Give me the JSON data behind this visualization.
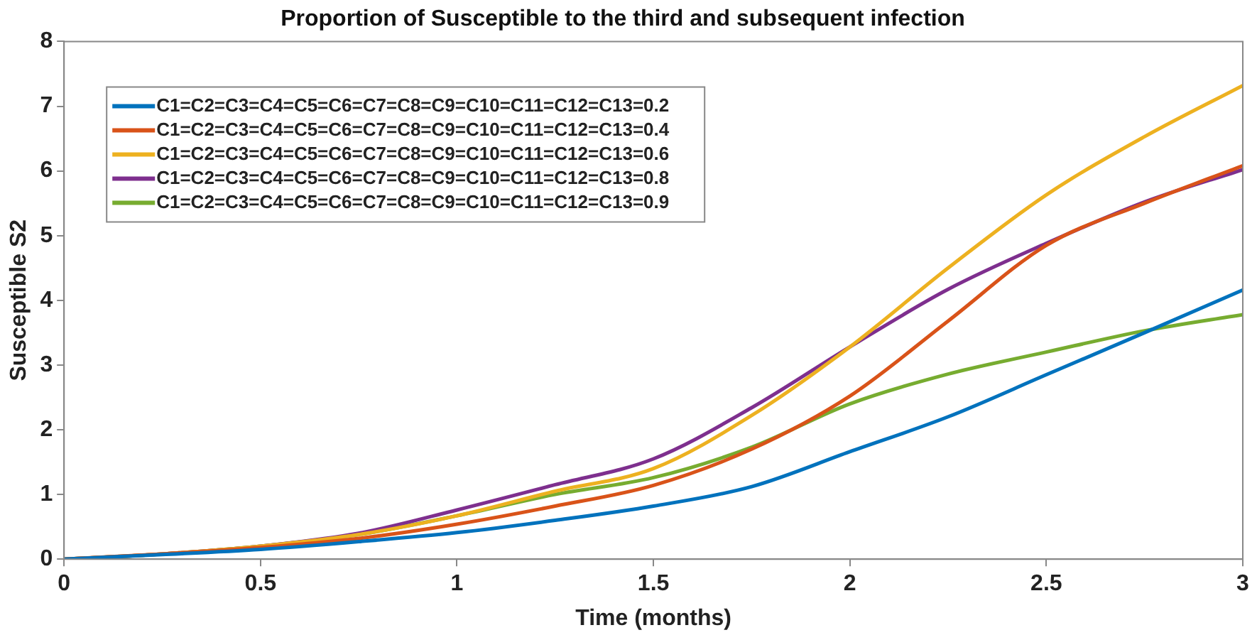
{
  "chart_data": {
    "type": "line",
    "title": "Proportion of Susceptible to the third and subsequent infection",
    "xlabel": "Time (months)",
    "ylabel": "Susceptible S2",
    "x": [
      0,
      0.25,
      0.5,
      0.75,
      1,
      1.25,
      1.5,
      1.75,
      2,
      2.25,
      2.5,
      2.75,
      3
    ],
    "series": [
      {
        "name": "C1=C2=C3=C4=C5=C6=C7=C8=C9=C10=C11=C12=C13=0.2",
        "color": "#0072bd",
        "values": [
          0,
          0.07,
          0.15,
          0.27,
          0.41,
          0.6,
          0.82,
          1.12,
          1.66,
          2.2,
          2.85,
          3.5,
          4.16
        ]
      },
      {
        "name": "C1=C2=C3=C4=C5=C6=C7=C8=C9=C10=C11=C12=C13=0.4",
        "color": "#d95319",
        "values": [
          0,
          0.08,
          0.18,
          0.32,
          0.54,
          0.82,
          1.14,
          1.7,
          2.52,
          3.68,
          4.85,
          5.5,
          6.08
        ]
      },
      {
        "name": "C1=C2=C3=C4=C5=C6=C7=C8=C9=C10=C11=C12=C13=0.6",
        "color": "#edb120",
        "values": [
          0,
          0.08,
          0.2,
          0.38,
          0.67,
          1.05,
          1.4,
          2.22,
          3.28,
          4.5,
          5.63,
          6.53,
          7.32
        ]
      },
      {
        "name": "C1=C2=C3=C4=C5=C6=C7=C8=C9=C10=C11=C12=C13=0.8",
        "color": "#7e2f8e",
        "values": [
          0,
          0.08,
          0.2,
          0.4,
          0.76,
          1.15,
          1.55,
          2.34,
          3.28,
          4.17,
          4.88,
          5.52,
          6.02
        ]
      },
      {
        "name": "C1=C2=C3=C4=C5=C6=C7=C8=C9=C10=C11=C12=C13=0.9",
        "color": "#77ac30",
        "values": [
          0,
          0.08,
          0.2,
          0.38,
          0.67,
          1.0,
          1.26,
          1.73,
          2.4,
          2.86,
          3.2,
          3.53,
          3.78
        ]
      }
    ],
    "xlim": [
      0,
      3
    ],
    "xticks": [
      0,
      0.5,
      1,
      1.5,
      2,
      2.5,
      3
    ],
    "ylim": [
      0,
      8
    ],
    "yticks": [
      0,
      1,
      2,
      3,
      4,
      5,
      6,
      7,
      8
    ],
    "grid": false,
    "legend": "top left",
    "marker": "none",
    "line_style": "solid"
  }
}
